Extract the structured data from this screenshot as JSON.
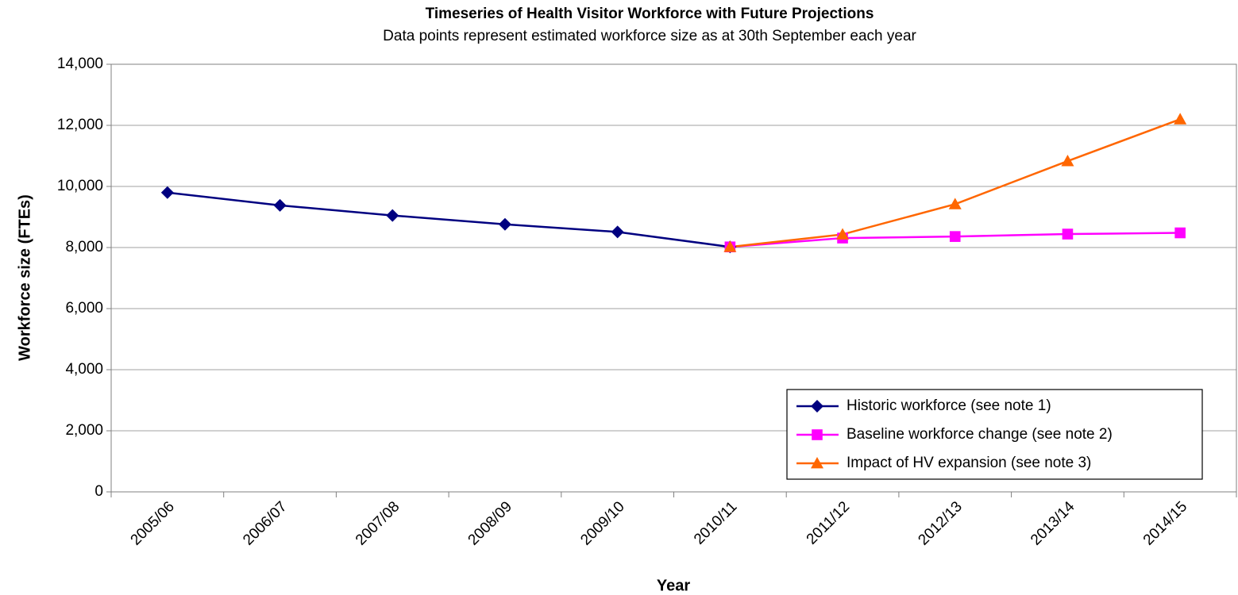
{
  "chart_data": {
    "type": "line",
    "title": "Timeseries of Health Visitor Workforce with Future Projections",
    "subtitle": "Data points represent estimated workforce size as at 30th September each year",
    "x_label": "Year",
    "y_label": "Workforce size (FTEs)",
    "categories": [
      "2005/06",
      "2006/07",
      "2007/08",
      "2008/09",
      "2009/10",
      "2010/11",
      "2011/12",
      "2012/13",
      "2013/14",
      "2014/15"
    ],
    "series": [
      {
        "name": "Historic workforce (see note 1)",
        "color": "#000080",
        "marker": "diamond",
        "values": [
          9800,
          9380,
          9050,
          8760,
          8510,
          8020,
          null,
          null,
          null,
          null
        ]
      },
      {
        "name": "Baseline workforce change (see note 2)",
        "color": "#ff00ff",
        "marker": "square",
        "values": [
          null,
          null,
          null,
          null,
          null,
          8020,
          8310,
          8360,
          8440,
          8480
        ]
      },
      {
        "name": "Impact of HV expansion (see note 3)",
        "color": "#ff6600",
        "marker": "triangle",
        "values": [
          null,
          null,
          null,
          null,
          null,
          8020,
          8430,
          9420,
          10830,
          12200
        ]
      }
    ],
    "ylim": [
      0,
      14000
    ],
    "yticks": [
      0,
      {
        "value": 2000,
        "label": "2,000"
      },
      {
        "value": 4000,
        "label": "4,000"
      },
      {
        "value": 6000,
        "label": "6,000"
      },
      {
        "value": 8000,
        "label": "8,000"
      },
      {
        "value": 10000,
        "label": "10,000"
      },
      {
        "value": 12000,
        "label": "12,000"
      },
      {
        "value": 14000,
        "label": "14,000"
      }
    ],
    "grid": true,
    "legend": "lower right"
  }
}
